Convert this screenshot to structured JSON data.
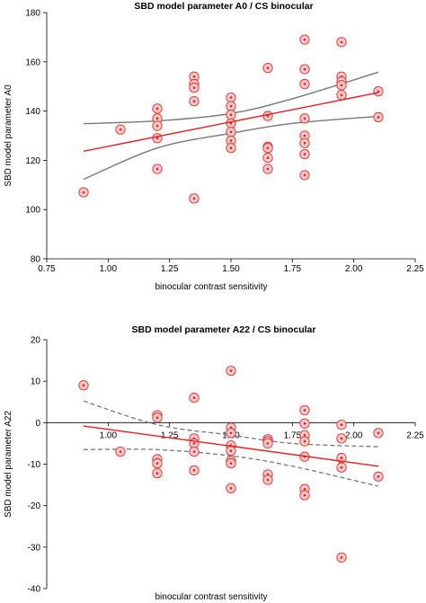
{
  "chart_data": [
    {
      "type": "scatter",
      "title": "SBD model parameter A0 / CS binocular",
      "xlabel": "binocular contrast sensitivity",
      "ylabel": "SBD model parameter A0",
      "xlim": [
        0.75,
        2.25
      ],
      "ylim": [
        80,
        180
      ],
      "xticks": [
        "0.75",
        "1.00",
        "1.25",
        "1.50",
        "1.75",
        "2.00",
        "2.25"
      ],
      "yticks": [
        "80",
        "100",
        "120",
        "140",
        "160",
        "180"
      ],
      "ci_style": "solid",
      "points": [
        [
          0.9,
          107
        ],
        [
          1.05,
          132.5
        ],
        [
          1.2,
          141
        ],
        [
          1.2,
          137
        ],
        [
          1.2,
          134
        ],
        [
          1.2,
          129
        ],
        [
          1.2,
          116.5
        ],
        [
          1.35,
          154
        ],
        [
          1.35,
          151
        ],
        [
          1.35,
          149.5
        ],
        [
          1.35,
          144
        ],
        [
          1.35,
          104.5
        ],
        [
          1.5,
          145.5
        ],
        [
          1.5,
          142
        ],
        [
          1.5,
          138.5
        ],
        [
          1.5,
          135
        ],
        [
          1.5,
          131.5
        ],
        [
          1.5,
          128
        ],
        [
          1.5,
          125
        ],
        [
          1.65,
          157.5
        ],
        [
          1.65,
          138
        ],
        [
          1.65,
          125.5
        ],
        [
          1.65,
          125
        ],
        [
          1.65,
          121
        ],
        [
          1.65,
          116.5
        ],
        [
          1.8,
          169
        ],
        [
          1.8,
          157
        ],
        [
          1.8,
          151
        ],
        [
          1.8,
          137
        ],
        [
          1.8,
          130
        ],
        [
          1.8,
          127
        ],
        [
          1.8,
          122.5
        ],
        [
          1.8,
          114
        ],
        [
          1.95,
          168
        ],
        [
          1.95,
          154
        ],
        [
          1.95,
          152
        ],
        [
          1.95,
          150.5
        ],
        [
          1.95,
          146.5
        ],
        [
          2.1,
          148
        ],
        [
          2.1,
          137.5
        ]
      ],
      "fit": [
        [
          0.9,
          123.7
        ],
        [
          2.1,
          147.5
        ]
      ],
      "ci_upper": [
        [
          0.9,
          134.9
        ],
        [
          1.2,
          136.0
        ],
        [
          1.5,
          139.0
        ],
        [
          1.75,
          145.0
        ],
        [
          2.1,
          155.8
        ]
      ],
      "ci_lower": [
        [
          0.9,
          112.3
        ],
        [
          1.2,
          125.0
        ],
        [
          1.5,
          131.0
        ],
        [
          1.75,
          135.0
        ],
        [
          2.1,
          137.9
        ]
      ]
    },
    {
      "type": "scatter",
      "title": "SBD model parameter A22 / CS binocular",
      "xlabel": "binocular contrast sensitivity",
      "ylabel": "SBD model parameter A22",
      "xlim": [
        0.75,
        2.25
      ],
      "ylim": [
        -40,
        20
      ],
      "xticks": [
        "1.00",
        "1.25",
        "1.50",
        "1.75",
        "2.00",
        "2.25"
      ],
      "yticks": [
        "-40",
        "-30",
        "-20",
        "-10",
        "0",
        "10",
        "20"
      ],
      "ci_style": "dashed",
      "points": [
        [
          0.9,
          9
        ],
        [
          1.05,
          -7
        ],
        [
          1.2,
          1.8
        ],
        [
          1.2,
          1.2
        ],
        [
          1.2,
          -8.8
        ],
        [
          1.2,
          -9.8
        ],
        [
          1.2,
          -12.2
        ],
        [
          1.35,
          6
        ],
        [
          1.35,
          -3.8
        ],
        [
          1.35,
          -5
        ],
        [
          1.35,
          -7
        ],
        [
          1.35,
          -11.5
        ],
        [
          1.5,
          12.5
        ],
        [
          1.5,
          -1.2
        ],
        [
          1.5,
          -2.5
        ],
        [
          1.5,
          -5.5
        ],
        [
          1.5,
          -6.8
        ],
        [
          1.5,
          -9.2
        ],
        [
          1.5,
          -9.8
        ],
        [
          1.5,
          -15.8
        ],
        [
          1.65,
          -4
        ],
        [
          1.65,
          -4.5
        ],
        [
          1.65,
          -5
        ],
        [
          1.65,
          -12.5
        ],
        [
          1.65,
          -13.8
        ],
        [
          1.8,
          3
        ],
        [
          1.8,
          -0.2
        ],
        [
          1.8,
          -3
        ],
        [
          1.8,
          -4.5
        ],
        [
          1.8,
          -8.2
        ],
        [
          1.8,
          -16
        ],
        [
          1.8,
          -17.5
        ],
        [
          1.95,
          -0.5
        ],
        [
          1.95,
          -3.8
        ],
        [
          1.95,
          -8.5
        ],
        [
          1.95,
          -10.8
        ],
        [
          1.95,
          -32.5
        ],
        [
          2.1,
          -2.5
        ],
        [
          2.1,
          -13
        ]
      ],
      "fit": [
        [
          0.9,
          -0.8
        ],
        [
          2.1,
          -10.5
        ]
      ],
      "ci_upper": [
        [
          0.9,
          5.2
        ],
        [
          1.2,
          -0.5
        ],
        [
          1.5,
          -3.0
        ],
        [
          1.75,
          -5.0
        ],
        [
          2.1,
          -5.8
        ]
      ],
      "ci_lower": [
        [
          0.9,
          -6.5
        ],
        [
          1.2,
          -6.5
        ],
        [
          1.5,
          -8.0
        ],
        [
          1.75,
          -10.5
        ],
        [
          2.1,
          -15.3
        ]
      ]
    }
  ]
}
